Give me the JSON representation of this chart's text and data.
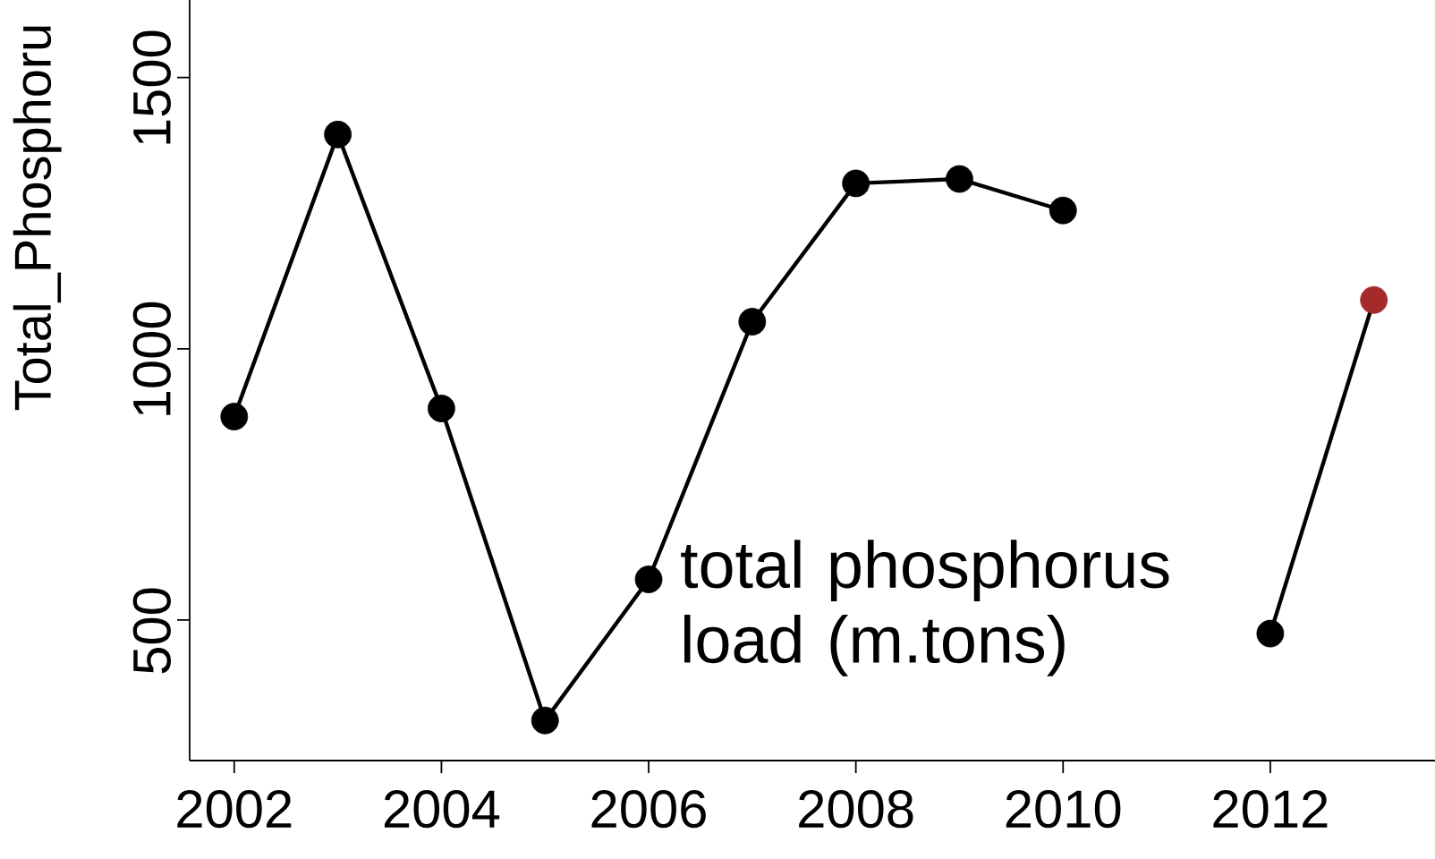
{
  "chart_data": {
    "type": "line",
    "ylabel": "Total_Phosphoru",
    "x": [
      2002,
      2003,
      2004,
      2005,
      2006,
      2007,
      2008,
      2009,
      2010,
      2011,
      2012,
      2013
    ],
    "series": [
      {
        "color": "#000000",
        "values": [
          875,
          1395,
          890,
          315,
          575,
          1050,
          1305,
          1313,
          1255,
          null,
          475,
          1090
        ],
        "colors": [
          "#000000",
          "#000000",
          "#000000",
          "#000000",
          "#000000",
          "#000000",
          "#000000",
          "#000000",
          "#000000",
          "#000000",
          "#000000",
          "#a52a2a"
        ]
      }
    ],
    "xlim": [
      2001.57,
      2013.59
    ],
    "ylim": [
      241,
      1643
    ],
    "xticks": [
      2002,
      2004,
      2006,
      2008,
      2010,
      2012
    ],
    "yticks": [
      500,
      1000,
      1500
    ],
    "marker": "circle",
    "line_style": "solid",
    "grid": false,
    "annotations": [
      {
        "text": "total phosphorus load (m.tons)",
        "x": 2006,
        "y": 575
      }
    ]
  }
}
